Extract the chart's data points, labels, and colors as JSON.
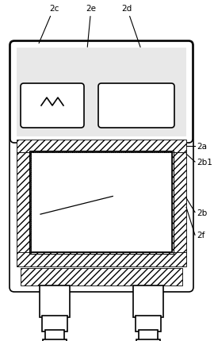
{
  "bg_color": "#ffffff",
  "line_color": "#000000",
  "figsize": [
    2.7,
    4.31
  ],
  "dpi": 100,
  "labels": [
    "2c",
    "2e",
    "2d",
    "2a",
    "2b1",
    "2b",
    "2f"
  ],
  "label_fontsize": 7.5
}
